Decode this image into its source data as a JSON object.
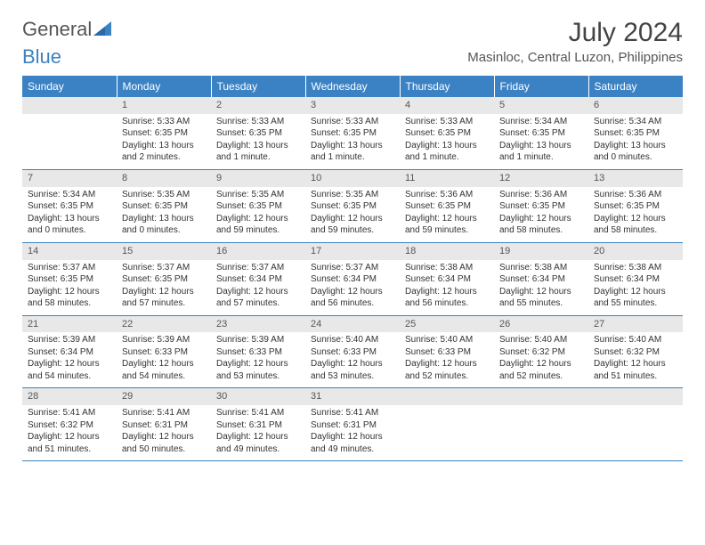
{
  "logo": {
    "textGray": "General",
    "textBlue": "Blue"
  },
  "title": "July 2024",
  "location": "Masinloc, Central Luzon, Philippines",
  "colors": {
    "headerBg": "#3b82c4",
    "headerText": "#ffffff",
    "dayNumBg": "#e8e8e8",
    "borderColor": "#3b82c4",
    "bodyText": "#333333"
  },
  "dayHeaders": [
    "Sunday",
    "Monday",
    "Tuesday",
    "Wednesday",
    "Thursday",
    "Friday",
    "Saturday"
  ],
  "weeks": [
    [
      {
        "n": "",
        "sr": "",
        "ss": "",
        "dl": ""
      },
      {
        "n": "1",
        "sr": "Sunrise: 5:33 AM",
        "ss": "Sunset: 6:35 PM",
        "dl": "Daylight: 13 hours and 2 minutes."
      },
      {
        "n": "2",
        "sr": "Sunrise: 5:33 AM",
        "ss": "Sunset: 6:35 PM",
        "dl": "Daylight: 13 hours and 1 minute."
      },
      {
        "n": "3",
        "sr": "Sunrise: 5:33 AM",
        "ss": "Sunset: 6:35 PM",
        "dl": "Daylight: 13 hours and 1 minute."
      },
      {
        "n": "4",
        "sr": "Sunrise: 5:33 AM",
        "ss": "Sunset: 6:35 PM",
        "dl": "Daylight: 13 hours and 1 minute."
      },
      {
        "n": "5",
        "sr": "Sunrise: 5:34 AM",
        "ss": "Sunset: 6:35 PM",
        "dl": "Daylight: 13 hours and 1 minute."
      },
      {
        "n": "6",
        "sr": "Sunrise: 5:34 AM",
        "ss": "Sunset: 6:35 PM",
        "dl": "Daylight: 13 hours and 0 minutes."
      }
    ],
    [
      {
        "n": "7",
        "sr": "Sunrise: 5:34 AM",
        "ss": "Sunset: 6:35 PM",
        "dl": "Daylight: 13 hours and 0 minutes."
      },
      {
        "n": "8",
        "sr": "Sunrise: 5:35 AM",
        "ss": "Sunset: 6:35 PM",
        "dl": "Daylight: 13 hours and 0 minutes."
      },
      {
        "n": "9",
        "sr": "Sunrise: 5:35 AM",
        "ss": "Sunset: 6:35 PM",
        "dl": "Daylight: 12 hours and 59 minutes."
      },
      {
        "n": "10",
        "sr": "Sunrise: 5:35 AM",
        "ss": "Sunset: 6:35 PM",
        "dl": "Daylight: 12 hours and 59 minutes."
      },
      {
        "n": "11",
        "sr": "Sunrise: 5:36 AM",
        "ss": "Sunset: 6:35 PM",
        "dl": "Daylight: 12 hours and 59 minutes."
      },
      {
        "n": "12",
        "sr": "Sunrise: 5:36 AM",
        "ss": "Sunset: 6:35 PM",
        "dl": "Daylight: 12 hours and 58 minutes."
      },
      {
        "n": "13",
        "sr": "Sunrise: 5:36 AM",
        "ss": "Sunset: 6:35 PM",
        "dl": "Daylight: 12 hours and 58 minutes."
      }
    ],
    [
      {
        "n": "14",
        "sr": "Sunrise: 5:37 AM",
        "ss": "Sunset: 6:35 PM",
        "dl": "Daylight: 12 hours and 58 minutes."
      },
      {
        "n": "15",
        "sr": "Sunrise: 5:37 AM",
        "ss": "Sunset: 6:35 PM",
        "dl": "Daylight: 12 hours and 57 minutes."
      },
      {
        "n": "16",
        "sr": "Sunrise: 5:37 AM",
        "ss": "Sunset: 6:34 PM",
        "dl": "Daylight: 12 hours and 57 minutes."
      },
      {
        "n": "17",
        "sr": "Sunrise: 5:37 AM",
        "ss": "Sunset: 6:34 PM",
        "dl": "Daylight: 12 hours and 56 minutes."
      },
      {
        "n": "18",
        "sr": "Sunrise: 5:38 AM",
        "ss": "Sunset: 6:34 PM",
        "dl": "Daylight: 12 hours and 56 minutes."
      },
      {
        "n": "19",
        "sr": "Sunrise: 5:38 AM",
        "ss": "Sunset: 6:34 PM",
        "dl": "Daylight: 12 hours and 55 minutes."
      },
      {
        "n": "20",
        "sr": "Sunrise: 5:38 AM",
        "ss": "Sunset: 6:34 PM",
        "dl": "Daylight: 12 hours and 55 minutes."
      }
    ],
    [
      {
        "n": "21",
        "sr": "Sunrise: 5:39 AM",
        "ss": "Sunset: 6:34 PM",
        "dl": "Daylight: 12 hours and 54 minutes."
      },
      {
        "n": "22",
        "sr": "Sunrise: 5:39 AM",
        "ss": "Sunset: 6:33 PM",
        "dl": "Daylight: 12 hours and 54 minutes."
      },
      {
        "n": "23",
        "sr": "Sunrise: 5:39 AM",
        "ss": "Sunset: 6:33 PM",
        "dl": "Daylight: 12 hours and 53 minutes."
      },
      {
        "n": "24",
        "sr": "Sunrise: 5:40 AM",
        "ss": "Sunset: 6:33 PM",
        "dl": "Daylight: 12 hours and 53 minutes."
      },
      {
        "n": "25",
        "sr": "Sunrise: 5:40 AM",
        "ss": "Sunset: 6:33 PM",
        "dl": "Daylight: 12 hours and 52 minutes."
      },
      {
        "n": "26",
        "sr": "Sunrise: 5:40 AM",
        "ss": "Sunset: 6:32 PM",
        "dl": "Daylight: 12 hours and 52 minutes."
      },
      {
        "n": "27",
        "sr": "Sunrise: 5:40 AM",
        "ss": "Sunset: 6:32 PM",
        "dl": "Daylight: 12 hours and 51 minutes."
      }
    ],
    [
      {
        "n": "28",
        "sr": "Sunrise: 5:41 AM",
        "ss": "Sunset: 6:32 PM",
        "dl": "Daylight: 12 hours and 51 minutes."
      },
      {
        "n": "29",
        "sr": "Sunrise: 5:41 AM",
        "ss": "Sunset: 6:31 PM",
        "dl": "Daylight: 12 hours and 50 minutes."
      },
      {
        "n": "30",
        "sr": "Sunrise: 5:41 AM",
        "ss": "Sunset: 6:31 PM",
        "dl": "Daylight: 12 hours and 49 minutes."
      },
      {
        "n": "31",
        "sr": "Sunrise: 5:41 AM",
        "ss": "Sunset: 6:31 PM",
        "dl": "Daylight: 12 hours and 49 minutes."
      },
      {
        "n": "",
        "sr": "",
        "ss": "",
        "dl": ""
      },
      {
        "n": "",
        "sr": "",
        "ss": "",
        "dl": ""
      },
      {
        "n": "",
        "sr": "",
        "ss": "",
        "dl": ""
      }
    ]
  ]
}
